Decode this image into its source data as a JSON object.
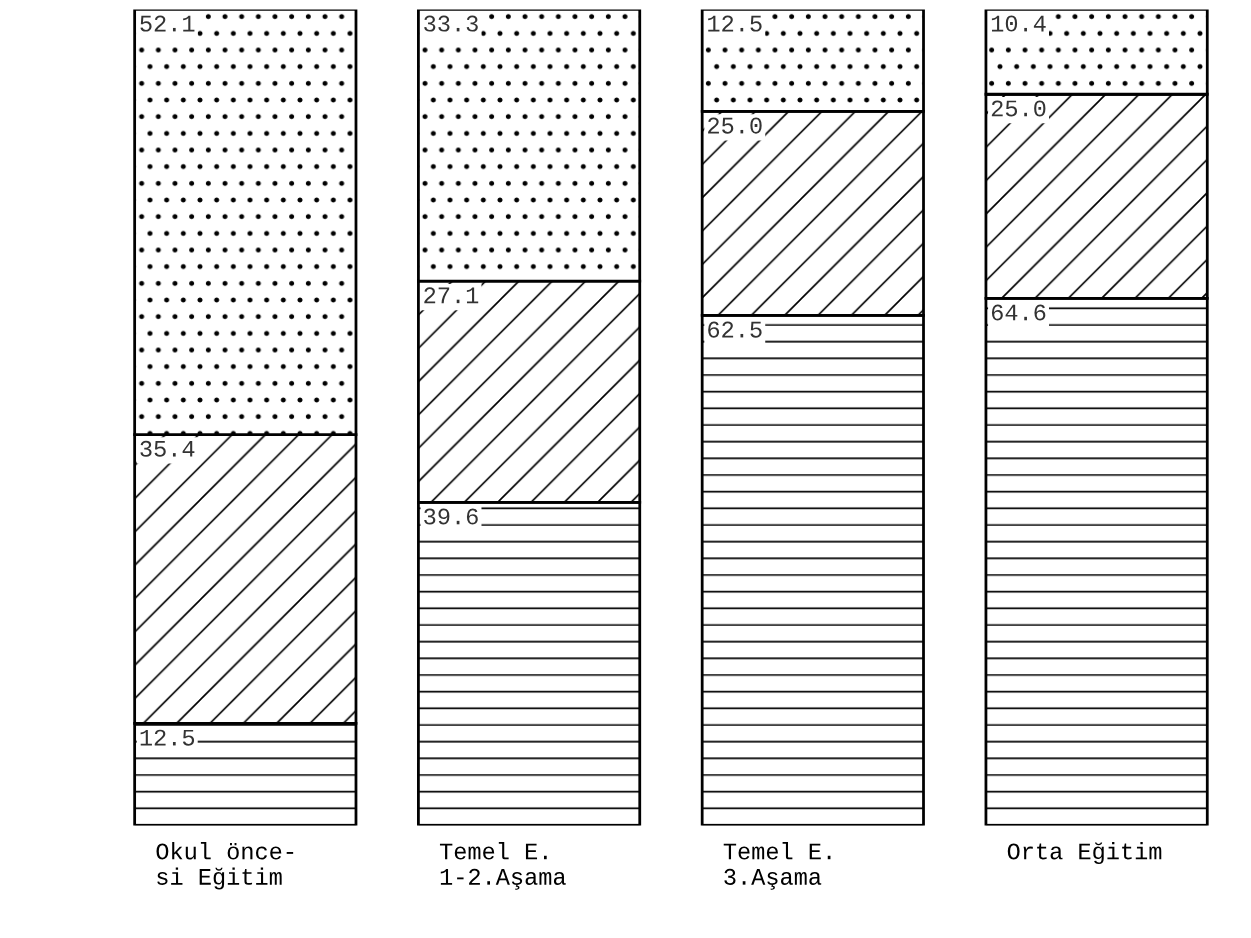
{
  "chart_data": {
    "type": "bar",
    "stacked": true,
    "categories": [
      "Okul önce-\nsi Eğitim",
      "Temel E.\n1-2.Aşama",
      "Temel E.\n3.Aşama",
      "Orta Eğitim"
    ],
    "tick_labels": "x",
    "grid": false,
    "legend": false,
    "series": [
      {
        "color": "#000000",
        "values": [
          12.5,
          39.6,
          62.5,
          64.6
        ],
        "value_labels": [
          "12.5",
          "39.6",
          "62.5",
          "64.6"
        ]
      },
      {
        "color": "#000000",
        "values": [
          35.4,
          27.1,
          25.0,
          25.0
        ],
        "value_labels": [
          "35.4",
          "27.1",
          "25.0",
          "25.0"
        ]
      },
      {
        "color": "#000000",
        "values": [
          52.1,
          33.3,
          12.5,
          10.4
        ],
        "value_labels": [
          "52.1",
          "33.3",
          "12.5",
          "10.4"
        ]
      }
    ]
  }
}
